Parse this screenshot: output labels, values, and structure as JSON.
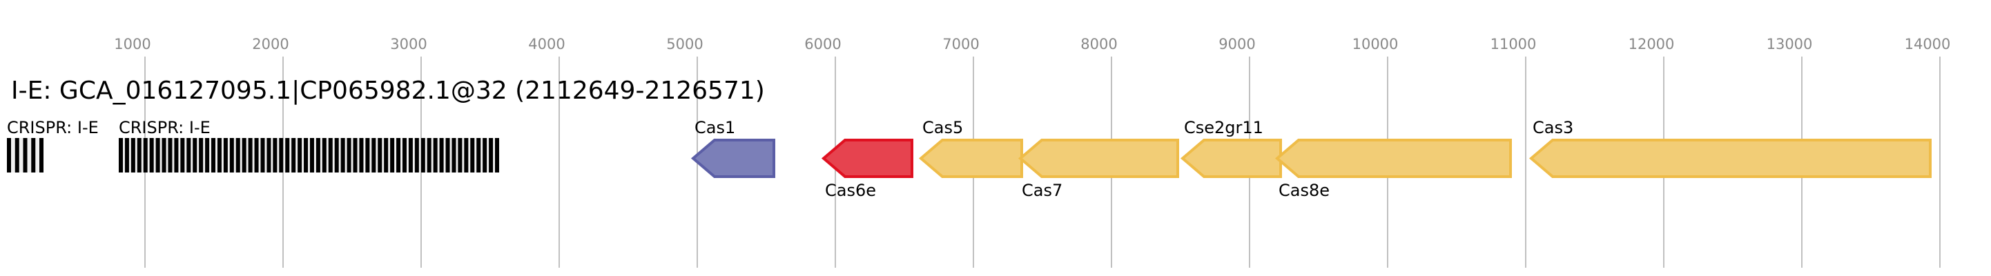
{
  "title": "I-E: GCA_016127095.1|CP065982.1@32 (2112649-2126571)",
  "axis": {
    "ticks": [
      1000,
      2000,
      3000,
      4000,
      5000,
      6000,
      7000,
      8000,
      9000,
      10000,
      11000,
      12000,
      13000,
      14000
    ],
    "tick_labels": [
      "1000",
      "2000",
      "3000",
      "4000",
      "5000",
      "6000",
      "7000",
      "8000",
      "9000",
      "10000",
      "11000",
      "12000",
      "13000",
      "14000"
    ],
    "range_bp": [
      0,
      14250
    ]
  },
  "crispr_arrays": [
    {
      "label": "CRISPR: I-E",
      "start": 0,
      "end": 265,
      "repeats": 5
    },
    {
      "label": "CRISPR: I-E",
      "start": 810,
      "end": 3565,
      "repeats": 62
    }
  ],
  "genes": [
    {
      "label": "Cas1",
      "start": 4970,
      "end": 5555,
      "strand": "-",
      "label_pos": "above",
      "fill": "#7b7fb8",
      "stroke": "#5b5ea6"
    },
    {
      "label": "Cas6e",
      "start": 5915,
      "end": 6555,
      "strand": "-",
      "label_pos": "below",
      "fill": "#e6434f",
      "stroke": "#e01020"
    },
    {
      "label": "Cas5",
      "start": 6620,
      "end": 7350,
      "strand": "-",
      "label_pos": "above",
      "fill": "#f2cd76",
      "stroke": "#efbc48"
    },
    {
      "label": "Cas7",
      "start": 7340,
      "end": 8480,
      "strand": "-",
      "label_pos": "below",
      "fill": "#f2cd76",
      "stroke": "#efbc48"
    },
    {
      "label": "Cse2gr11",
      "start": 8515,
      "end": 9225,
      "strand": "-",
      "label_pos": "above",
      "fill": "#f2cd76",
      "stroke": "#efbc48"
    },
    {
      "label": "Cas8e",
      "start": 9200,
      "end": 10890,
      "strand": "-",
      "label_pos": "below",
      "fill": "#f2cd76",
      "stroke": "#efbc48"
    },
    {
      "label": "Cas3",
      "start": 11040,
      "end": 13930,
      "strand": "-",
      "label_pos": "above",
      "fill": "#f2cd76",
      "stroke": "#efbc48"
    }
  ],
  "colors": {
    "repeat": "#000000",
    "spacer": "#f0f0f0",
    "grid": "#c0c0c0",
    "tick_text": "#888888"
  }
}
